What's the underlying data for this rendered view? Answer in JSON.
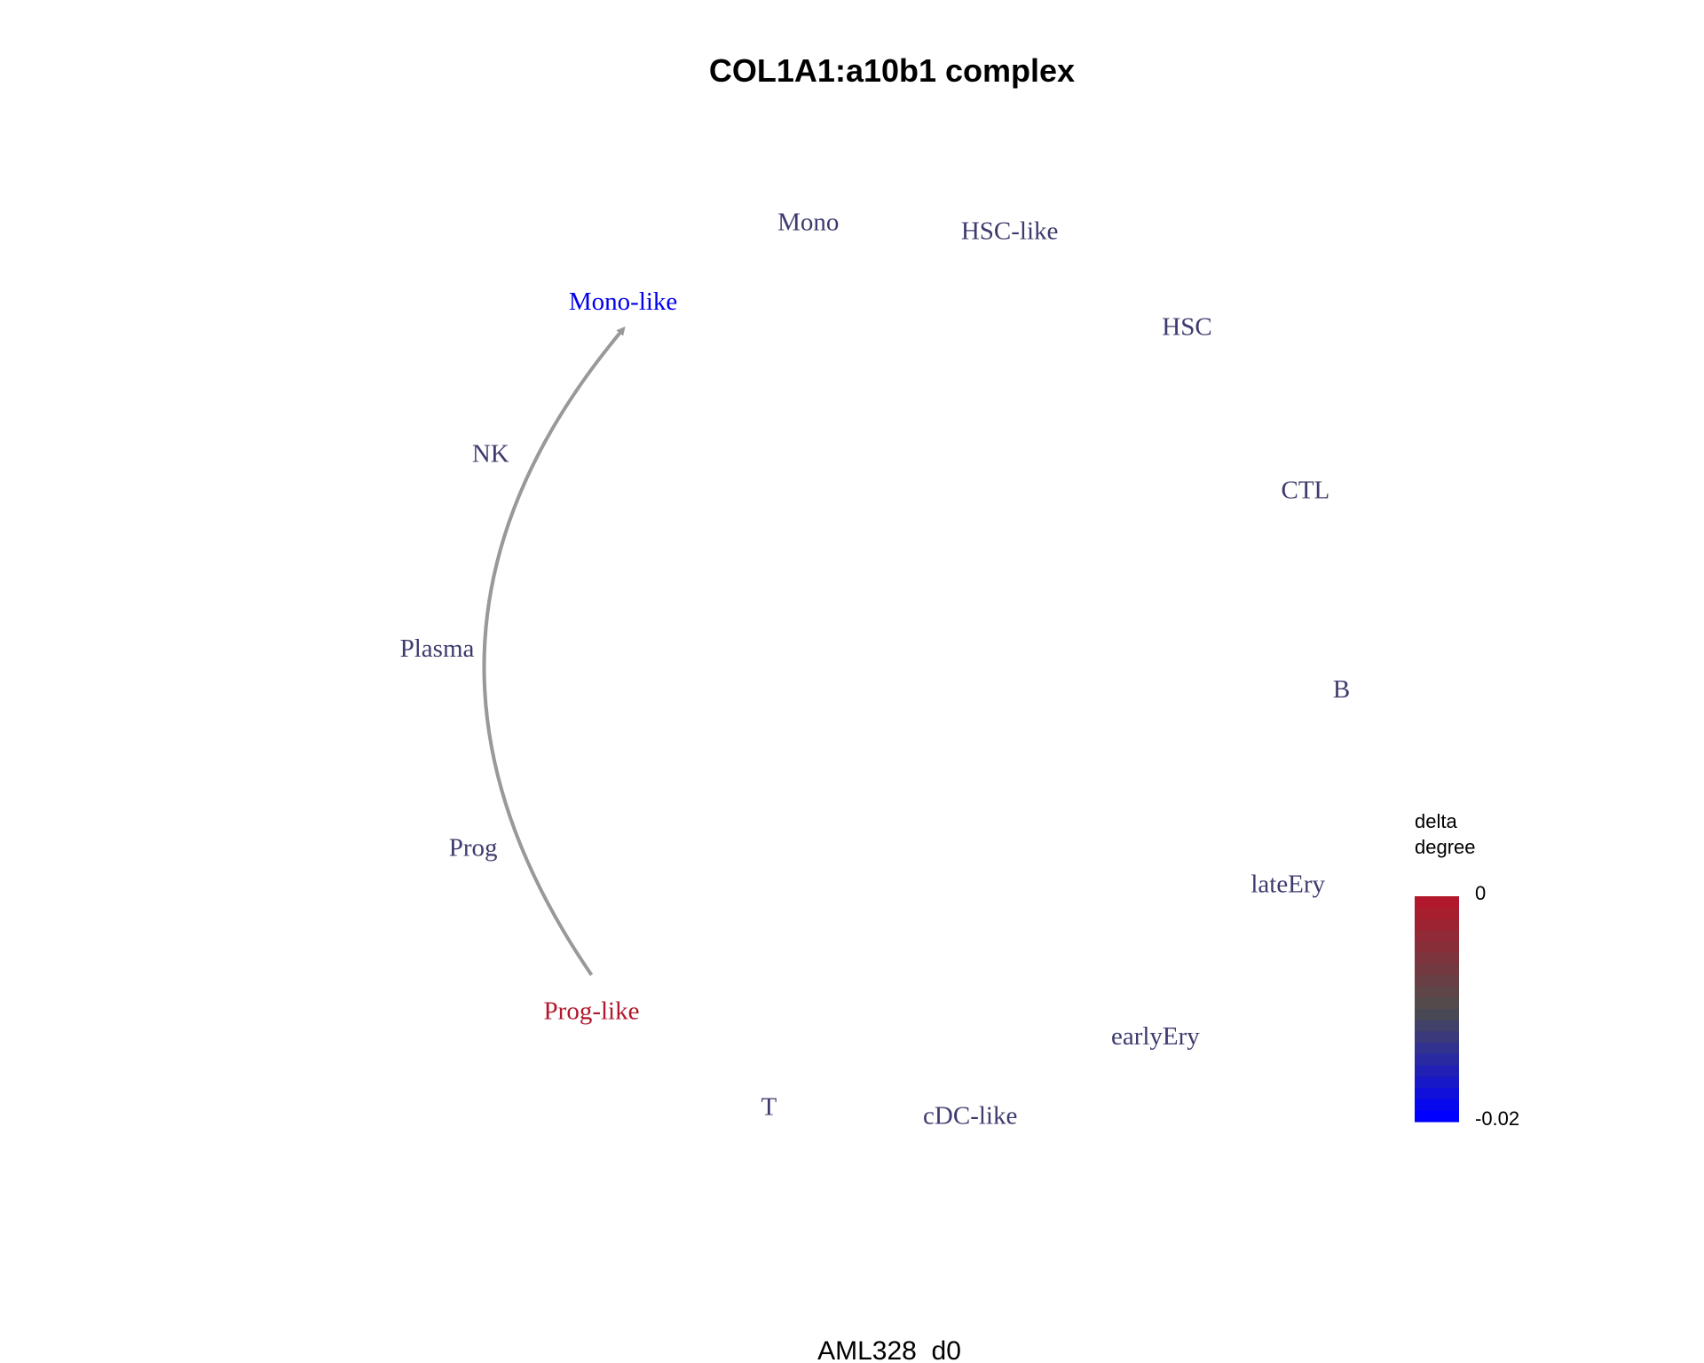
{
  "title": "COL1A1:a10b1 complex",
  "caption": "AML328_d0",
  "nodes": [
    {
      "id": "Mono",
      "label": "Mono",
      "color": "#3d3b6e"
    },
    {
      "id": "HSC-like",
      "label": "HSC-like",
      "color": "#3d3b6e"
    },
    {
      "id": "HSC",
      "label": "HSC",
      "color": "#3d3b6e"
    },
    {
      "id": "CTL",
      "label": "CTL",
      "color": "#3d3b6e"
    },
    {
      "id": "B",
      "label": "B",
      "color": "#3d3b6e"
    },
    {
      "id": "lateEry",
      "label": "lateEry",
      "color": "#3d3b6e"
    },
    {
      "id": "earlyEry",
      "label": "earlyEry",
      "color": "#3d3b6e"
    },
    {
      "id": "cDC-like",
      "label": "cDC-like",
      "color": "#3d3b6e"
    },
    {
      "id": "T",
      "label": "T",
      "color": "#3d3b6e"
    },
    {
      "id": "Prog-like",
      "label": "Prog-like",
      "color": "#b2182b"
    },
    {
      "id": "Prog",
      "label": "Prog",
      "color": "#3d3b6e"
    },
    {
      "id": "Plasma",
      "label": "Plasma",
      "color": "#3d3b6e"
    },
    {
      "id": "NK",
      "label": "NK",
      "color": "#3d3b6e"
    },
    {
      "id": "Mono-like",
      "label": "Mono-like",
      "color": "#0000ee"
    }
  ],
  "edges": [
    {
      "from": "Prog-like",
      "to": "Mono-like",
      "color": "#999999"
    }
  ],
  "legend": {
    "title_line1": "delta",
    "title_line2": "degree",
    "max_label": "0",
    "min_label": "-0.02",
    "max_value": 0,
    "min_value": -0.02,
    "color_high": "#b2182b",
    "color_mid": "#4d4d4d",
    "color_low": "#0000ff"
  }
}
